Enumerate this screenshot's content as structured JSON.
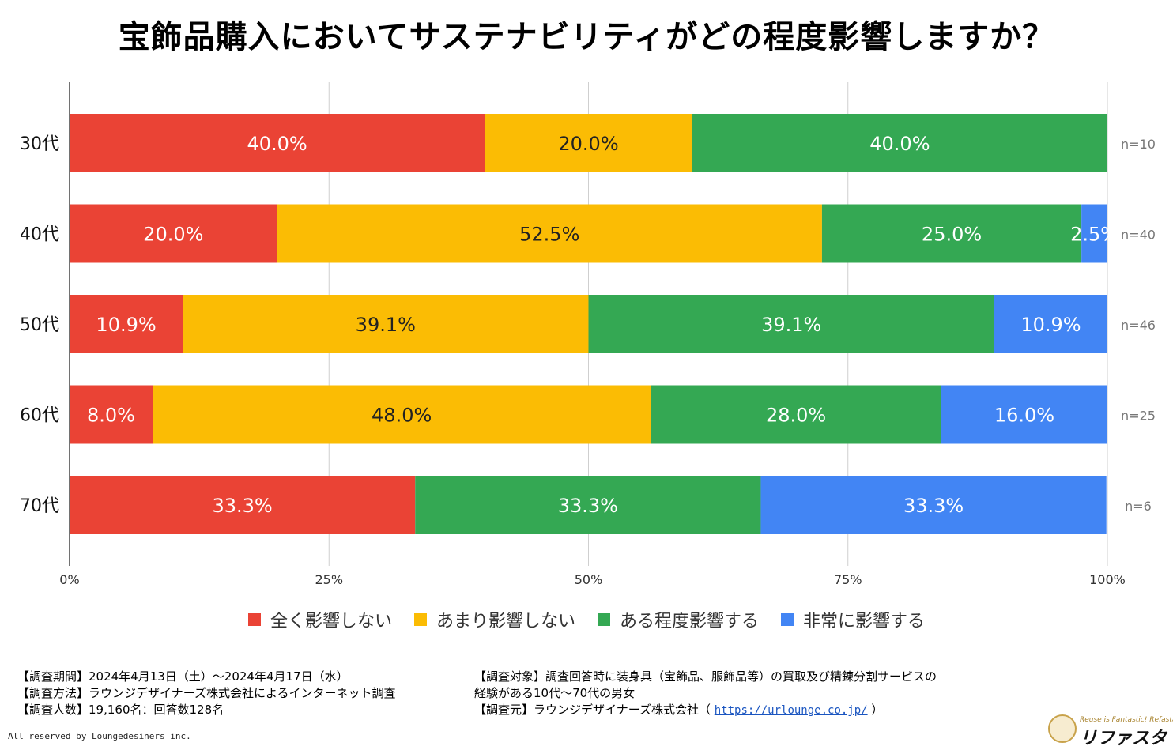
{
  "chart_data": {
    "type": "bar",
    "orientation": "horizontal-stacked-100",
    "title": "宝飾品購入においてサステナビリティがどの程度影響しますか？",
    "categories": [
      "30代",
      "40代",
      "50代",
      "60代",
      "70代"
    ],
    "sample_sizes": [
      "n=10",
      "n=40",
      "n=46",
      "n=25",
      "n=6"
    ],
    "xlim": [
      0,
      100
    ],
    "xticks": [
      "0%",
      "25%",
      "50%",
      "75%",
      "100%"
    ],
    "grid": true,
    "legend_position": "bottom",
    "series": [
      {
        "name": "全く影響しない",
        "color": "#ea4335",
        "label_color": "#ffffff",
        "values": [
          40.0,
          20.0,
          10.9,
          8.0,
          33.3
        ],
        "labels": [
          "40.0%",
          "20.0%",
          "10.9%",
          "8.0%",
          "33.3%"
        ]
      },
      {
        "name": "あまり影響しない",
        "color": "#fbbc04",
        "label_color": "#222222",
        "values": [
          20.0,
          52.5,
          39.1,
          48.0,
          0
        ],
        "labels": [
          "20.0%",
          "52.5%",
          "39.1%",
          "48.0%",
          ""
        ]
      },
      {
        "name": "ある程度影響する",
        "color": "#34a853",
        "label_color": "#ffffff",
        "values": [
          40.0,
          25.0,
          39.1,
          28.0,
          33.3
        ],
        "labels": [
          "40.0%",
          "25.0%",
          "39.1%",
          "28.0%",
          "33.3%"
        ]
      },
      {
        "name": "非常に影響する",
        "color": "#4285f4",
        "label_color": "#ffffff",
        "values": [
          0,
          2.5,
          10.9,
          16.0,
          33.3
        ],
        "labels": [
          "",
          "2.5%",
          "10.9%",
          "16.0%",
          "33.3%"
        ]
      }
    ]
  },
  "notes": {
    "left": [
      "【調査期間】2024年4月13日（土）～2024年4月17日（水）",
      "【調査方法】ラウンジデザイナーズ株式会社によるインターネット調査",
      "【調査人数】19,160名：回答数128名"
    ],
    "right_line1": "【調査対象】調査回答時に装身具（宝飾品、服飾品等）の買取及び精錬分割サービスの",
    "right_line2": "経験がある10代～70代の男女",
    "right_line3_prefix": "【調査元】ラウンジデザイナーズ株式会社（",
    "right_line3_link": "https://urlounge.co.jp/",
    "right_line3_suffix": "）"
  },
  "copyright": "All reserved by Loungedesiners inc.",
  "brand": {
    "tagline": "Reuse is Fantastic! Refasta",
    "name": "リファスタ"
  }
}
